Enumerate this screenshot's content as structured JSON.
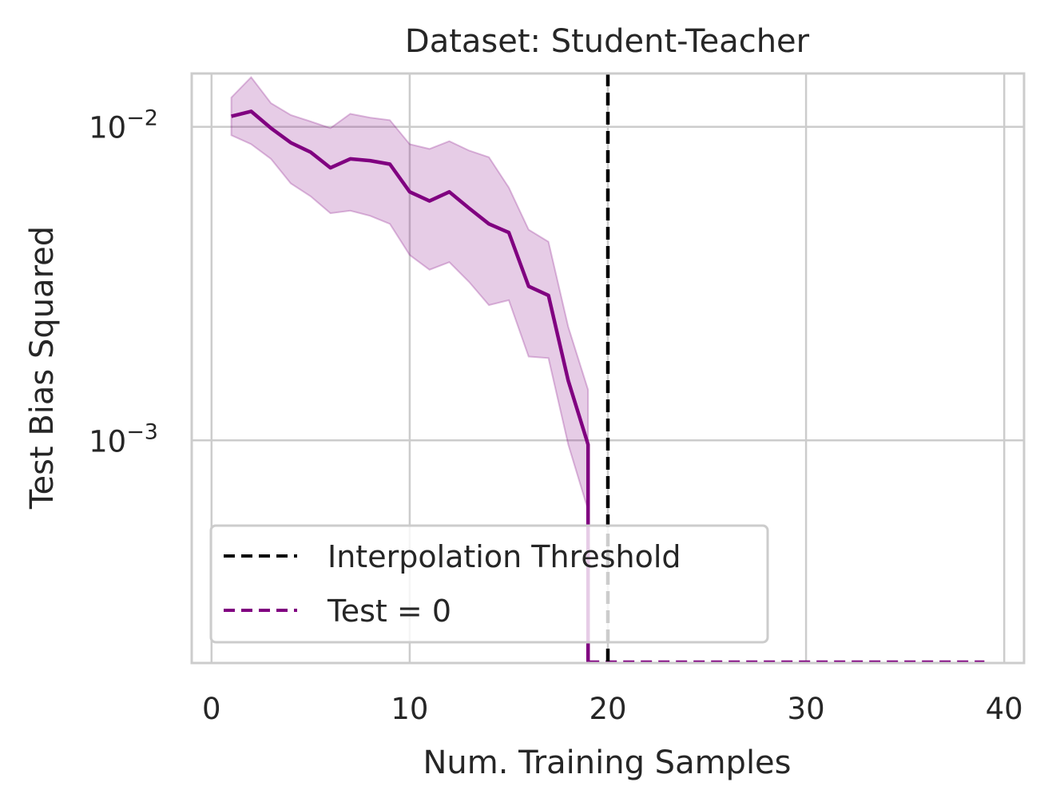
{
  "chart_data": {
    "type": "line",
    "title": "Dataset: Student-Teacher",
    "xlabel": "Num. Training Samples",
    "ylabel": "Test Bias Squared",
    "xlim": [
      -1,
      41
    ],
    "ylim_log10": [
      -3.71,
      -1.83
    ],
    "yscale": "log",
    "grid": true,
    "x_ticks": [
      {
        "value": 0,
        "label": "0"
      },
      {
        "value": 10,
        "label": "10"
      },
      {
        "value": 20,
        "label": "20"
      },
      {
        "value": 30,
        "label": "30"
      },
      {
        "value": 40,
        "label": "40"
      }
    ],
    "y_ticks": [
      {
        "value": 0.01,
        "base": "10",
        "exp": "−2"
      },
      {
        "value": 0.001,
        "base": "10",
        "exp": "−3"
      }
    ],
    "series": [
      {
        "color": "#800080",
        "x": [
          1,
          2,
          3,
          4,
          5,
          6,
          7,
          8,
          9,
          10,
          11,
          12,
          13,
          14,
          15,
          16,
          17,
          18,
          19
        ],
        "y": [
          0.0108,
          0.0112,
          0.0099,
          0.0089,
          0.0083,
          0.0074,
          0.0079,
          0.0078,
          0.0076,
          0.0062,
          0.0058,
          0.0062,
          0.0055,
          0.0049,
          0.0046,
          0.0031,
          0.0029,
          0.00155,
          0.00097
        ],
        "lower": [
          0.0094,
          0.0088,
          0.0079,
          0.0066,
          0.006,
          0.0053,
          0.0054,
          0.0052,
          0.0049,
          0.0039,
          0.0035,
          0.0037,
          0.0032,
          0.0027,
          0.0028,
          0.00185,
          0.00183,
          0.00097,
          0.0006
        ],
        "upper": [
          0.0124,
          0.0144,
          0.0119,
          0.0109,
          0.0104,
          0.0099,
          0.011,
          0.0107,
          0.0105,
          0.0088,
          0.0085,
          0.009,
          0.0084,
          0.008,
          0.0064,
          0.0047,
          0.0043,
          0.0023,
          0.00145
        ]
      }
    ],
    "drop_x": 19,
    "legend": {
      "position": "lower left",
      "entries": [
        {
          "label": "Interpolation Threshold",
          "color": "#000000",
          "style": "dashed",
          "x_value": 20
        },
        {
          "label": "Test = 0",
          "color": "#800080",
          "style": "dashed",
          "x_range": [
            19,
            39
          ]
        }
      ]
    },
    "colors": {
      "grid": "#cccccc",
      "spine": "#cccccc",
      "fill": "#800080",
      "text": "#262626"
    }
  }
}
